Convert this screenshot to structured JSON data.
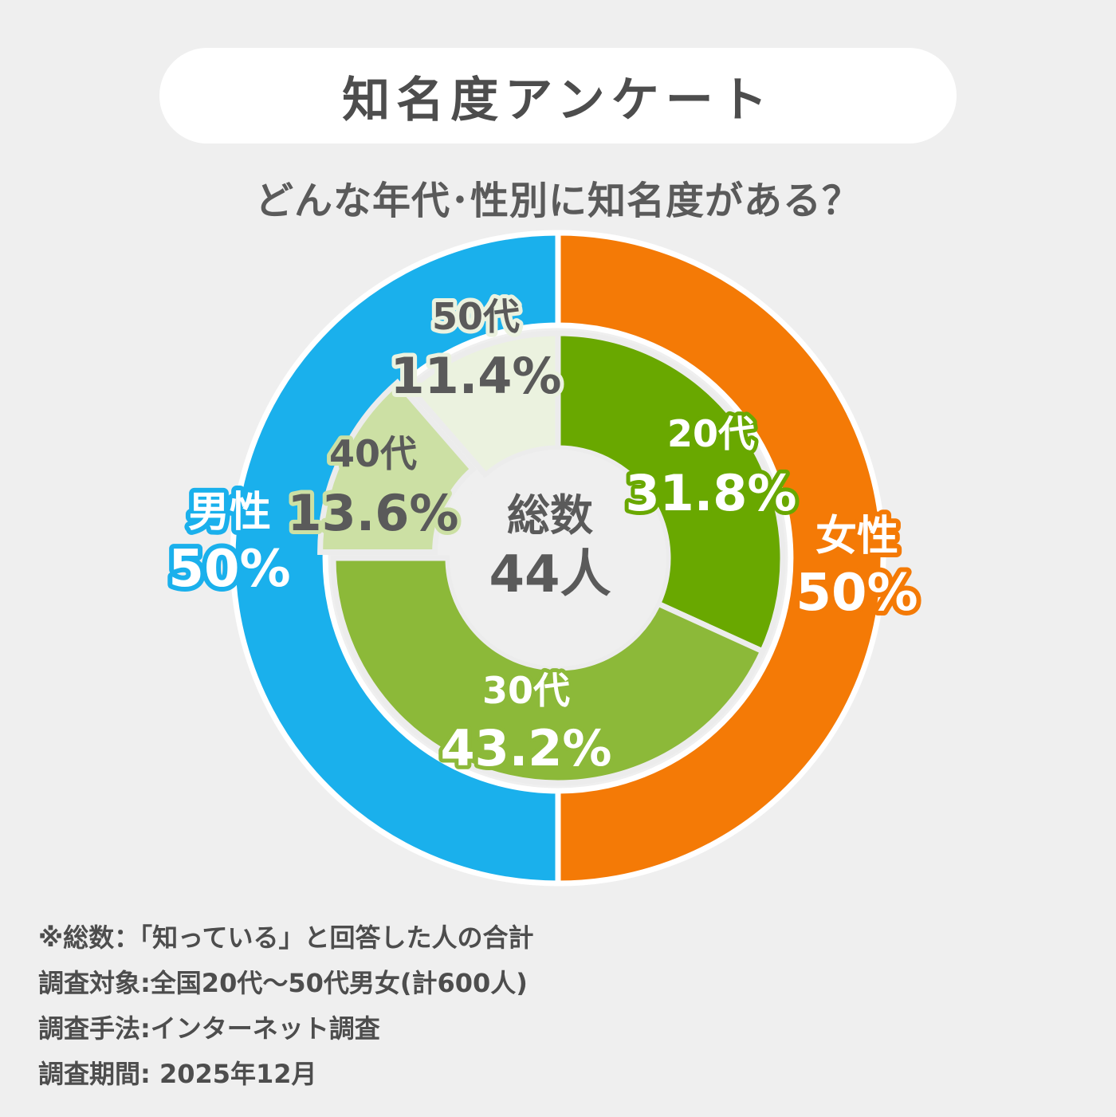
{
  "title": "知名度アンケート",
  "subtitle": "どんな年代･性別に知名度がある？",
  "chart_data": {
    "type": "pie",
    "variant": "nested-donut",
    "outer_ring": {
      "slices": [
        {
          "label": "女性",
          "value": 50,
          "value_label": "50%",
          "color": "#f47a06"
        },
        {
          "label": "男性",
          "value": 50,
          "value_label": "50%",
          "color": "#1ab0ec"
        }
      ]
    },
    "inner_ring": {
      "slices": [
        {
          "label": "20代",
          "value": 31.8,
          "value_label": "31.8%",
          "color": "#69a800"
        },
        {
          "label": "30代",
          "value": 43.2,
          "value_label": "43.2%",
          "color": "#8cb939"
        },
        {
          "label": "40代",
          "value": 13.6,
          "value_label": "13.6%",
          "color": "#cce0a4"
        },
        {
          "label": "50代",
          "value": 11.4,
          "value_label": "11.4%",
          "color": "#ebf2df"
        }
      ]
    },
    "center_label": "総数",
    "center_value": "44人"
  },
  "notes": [
    "※総数：「知っている」と回答した人の合計",
    "調査対象:全国20代～50代男女(計600人)",
    "調査手法:インターネット調査",
    "調査期間: 2025年12月"
  ]
}
